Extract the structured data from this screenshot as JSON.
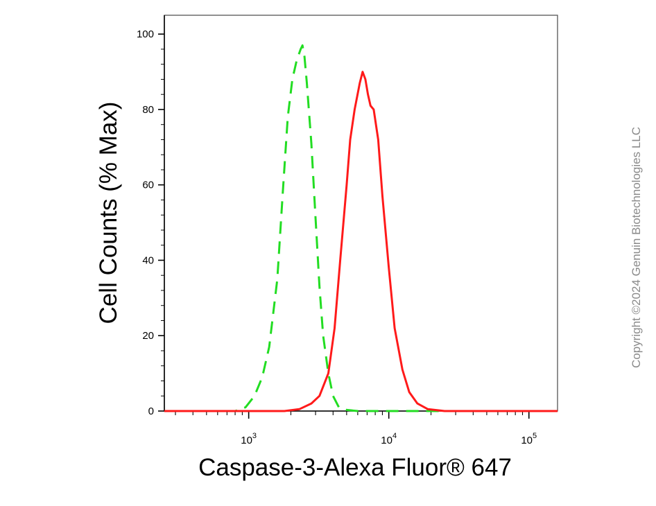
{
  "chart_data": {
    "type": "line",
    "title": "",
    "xlabel": "Caspase-3-Alexa Fluor® 647",
    "ylabel": "Cell Counts (% Max)",
    "x_scale": "log",
    "xlim": [
      250,
      160000
    ],
    "ylim": [
      0,
      105
    ],
    "x_ticks": [
      {
        "value": 1000,
        "base": "10",
        "exp": "3"
      },
      {
        "value": 10000,
        "base": "10",
        "exp": "4"
      },
      {
        "value": 100000,
        "base": "10",
        "exp": "5"
      }
    ],
    "y_ticks": [
      0,
      20,
      40,
      60,
      80,
      100
    ],
    "grid": false,
    "series": [
      {
        "color": "#22dd22",
        "style": "dashed",
        "x": [
          250,
          800,
          950,
          1100,
          1250,
          1400,
          1600,
          1750,
          1900,
          2050,
          2200,
          2350,
          2420,
          2500,
          2600,
          2800,
          3000,
          3200,
          3400,
          3700,
          4000,
          4400,
          5000,
          6000,
          8000,
          20000,
          160000
        ],
        "y": [
          0,
          0,
          1,
          4,
          9,
          17,
          35,
          58,
          78,
          88,
          93,
          96,
          97,
          94,
          87,
          71,
          51,
          33,
          20,
          10,
          4,
          1,
          0.3,
          0,
          0,
          0,
          0
        ]
      },
      {
        "color": "#ff1a1a",
        "style": "solid",
        "x": [
          250,
          1800,
          2300,
          2800,
          3200,
          3700,
          4100,
          4500,
          5000,
          5300,
          5700,
          6200,
          6500,
          6800,
          7100,
          7400,
          7800,
          8400,
          9000,
          10000,
          11000,
          12500,
          14000,
          16000,
          19000,
          25000,
          160000
        ],
        "y": [
          0,
          0,
          0.5,
          2,
          4,
          10,
          22,
          40,
          60,
          72,
          80,
          87,
          90,
          88,
          84,
          81,
          80,
          72,
          57,
          38,
          22,
          11,
          5,
          2,
          0.5,
          0,
          0
        ]
      }
    ]
  },
  "copyright": "Copyright ©2024 Genuin Biotechnologies LLC"
}
